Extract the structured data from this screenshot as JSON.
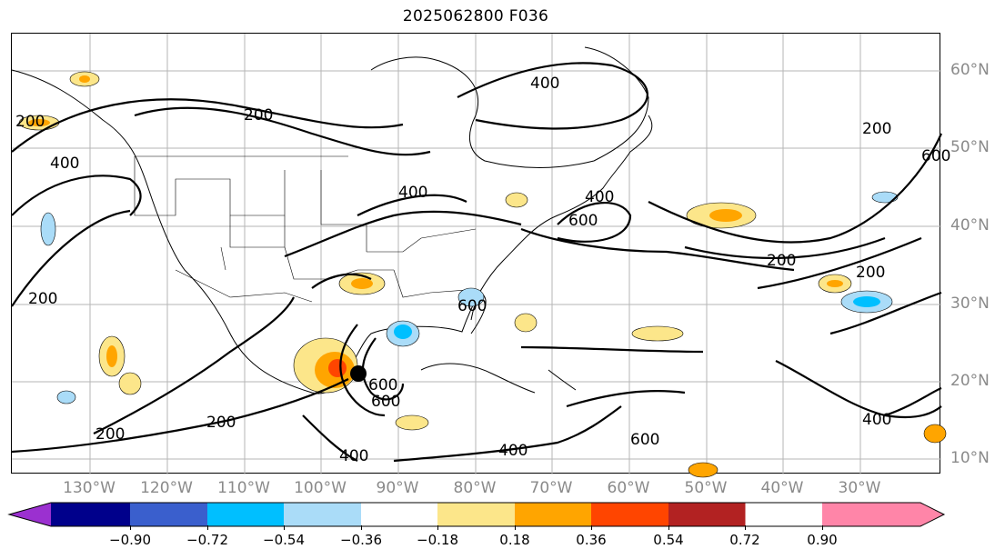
{
  "title": "2025062800 F036",
  "lon_labels": [
    "130°W",
    "120°W",
    "110°W",
    "100°W",
    "90°W",
    "80°W",
    "70°W",
    "60°W",
    "50°W",
    "40°W",
    "30°W"
  ],
  "lat_labels": [
    "60°N",
    "50°N",
    "40°N",
    "30°N",
    "20°N",
    "10°N"
  ],
  "contour_labels": [
    "200",
    "200",
    "200",
    "200",
    "200",
    "200",
    "200",
    "200",
    "400",
    "400",
    "400",
    "400",
    "400",
    "400",
    "400",
    "600",
    "600",
    "600",
    "600",
    "600",
    "600"
  ],
  "colorbar": {
    "ticks": [
      "−0.90",
      "−0.72",
      "−0.54",
      "−0.36",
      "−0.18",
      "0.18",
      "0.36",
      "0.54",
      "0.72",
      "0.90"
    ],
    "colors": [
      "#9b30d0",
      "#00008b",
      "#3a5fcd",
      "#00bfff",
      "#aadcf8",
      "#ffffff",
      "#fce68a",
      "#ffa500",
      "#ff4500",
      "#b22222",
      "#ff85a8"
    ]
  },
  "storm_marker": "storm-center"
}
